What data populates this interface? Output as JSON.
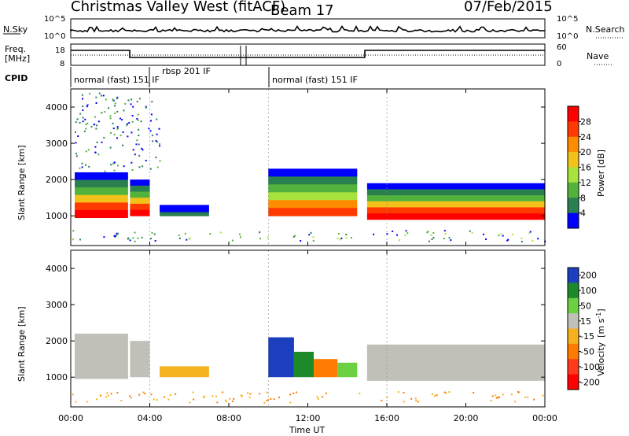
{
  "header": {
    "title": "Christmas Valley West (fitACF)",
    "beam": "Beam 17",
    "date": "07/Feb/2015"
  },
  "panels": {
    "nsky": {
      "label": "N.Sky",
      "right_label": "N.Search",
      "ticks_left": [
        "10^5",
        "10^0"
      ],
      "ticks_right": [
        "10^5",
        "10^0"
      ]
    },
    "freq": {
      "label_1": "Freq.",
      "label_2": "[MHz]",
      "right_label": "Nave",
      "ticks_left": [
        "18",
        "8"
      ],
      "ticks_right": [
        "60",
        "0"
      ]
    },
    "cpid": {
      "label": "CPID",
      "segments": [
        {
          "label": "normal (fast) 151 IF"
        },
        {
          "label": "rbsp 201 IF"
        },
        {
          "label": "normal (fast) 151 IF"
        }
      ]
    }
  },
  "colors": {
    "power": [
      "#0000ff",
      "#2a7f4f",
      "#52b23c",
      "#a8e23c",
      "#f2c21a",
      "#ff8c00",
      "#ff3a00",
      "#ff0000"
    ],
    "velocity": [
      "#1c3fbf",
      "#1c8a2a",
      "#6bd042",
      "#c0c0b8",
      "#f5b11e",
      "#ff7a00",
      "#ff3a1a",
      "#ff0000"
    ]
  },
  "chart_data": [
    {
      "type": "heatmap",
      "name": "power",
      "ylabel": "Slant Range [km]",
      "xlabel": "Time UT",
      "yticks": [
        "1000",
        "2000",
        "3000",
        "4000"
      ],
      "xticks": [
        "00:00",
        "04:00",
        "08:00",
        "12:00",
        "16:00",
        "20:00",
        "00:00"
      ],
      "xlim_hours": [
        0,
        24
      ],
      "ylim_km": [
        180,
        4500
      ],
      "colorbar": {
        "label": "Power [dB]",
        "ticks": [
          "28",
          "24",
          "20",
          "16",
          "12",
          "8",
          "4"
        ]
      },
      "regions": [
        {
          "t0": 0.2,
          "t1": 2.9,
          "r0": 950,
          "r1": 2200,
          "level": "strong"
        },
        {
          "t0": 3.0,
          "t1": 4.0,
          "r0": 1000,
          "r1": 2000,
          "level": "strong"
        },
        {
          "t0": 4.5,
          "t1": 7.0,
          "r0": 1000,
          "r1": 1300,
          "level": "weak"
        },
        {
          "t0": 10.0,
          "t1": 14.5,
          "r0": 1000,
          "r1": 2300,
          "level": "medium"
        },
        {
          "t0": 15.0,
          "t1": 24.0,
          "r0": 900,
          "r1": 1900,
          "level": "strong"
        },
        {
          "t0": 0.2,
          "t1": 4.5,
          "r0": 2200,
          "r1": 4400,
          "level": "sparse"
        }
      ]
    },
    {
      "type": "heatmap",
      "name": "velocity",
      "ylabel": "Slant Range [km]",
      "xlabel": "Time UT",
      "yticks": [
        "1000",
        "2000",
        "3000",
        "4000"
      ],
      "xticks": [
        "00:00",
        "04:00",
        "08:00",
        "12:00",
        "16:00",
        "20:00",
        "00:00"
      ],
      "xlim_hours": [
        0,
        24
      ],
      "ylim_km": [
        180,
        4500
      ],
      "colorbar": {
        "label_1": "Velocity",
        "label_2": "[m s",
        "label_3": "-1",
        "label_4": "]",
        "ticks": [
          "200",
          "100",
          "50",
          "15",
          "-15",
          "-50",
          "-100",
          "-200"
        ]
      },
      "regions": [
        {
          "t0": 0.2,
          "t1": 2.9,
          "r0": 950,
          "r1": 2200,
          "velocity": "near-zero"
        },
        {
          "t0": 3.0,
          "t1": 4.0,
          "r0": 1000,
          "r1": 2000,
          "velocity": "near-zero"
        },
        {
          "t0": 4.5,
          "t1": 7.0,
          "r0": 1000,
          "r1": 1300,
          "velocity": "-15 to -50"
        },
        {
          "t0": 10.0,
          "t1": 11.3,
          "r0": 1000,
          "r1": 2100,
          "velocity": "100 to 200"
        },
        {
          "t0": 11.3,
          "t1": 12.3,
          "r0": 1000,
          "r1": 1700,
          "velocity": "50 to 100"
        },
        {
          "t0": 12.3,
          "t1": 13.5,
          "r0": 1000,
          "r1": 1500,
          "velocity": "-50 to -100"
        },
        {
          "t0": 13.5,
          "t1": 14.5,
          "r0": 1000,
          "r1": 1400,
          "velocity": "15 to 50"
        },
        {
          "t0": 15.0,
          "t1": 24.0,
          "r0": 900,
          "r1": 1900,
          "velocity": "near-zero"
        }
      ]
    }
  ]
}
